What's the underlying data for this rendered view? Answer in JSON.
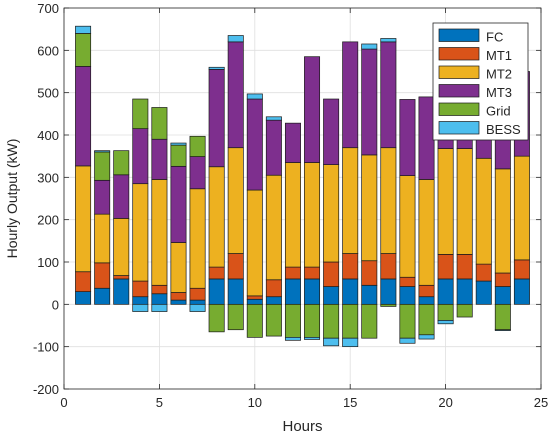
{
  "chart_data": {
    "type": "bar",
    "stacked": true,
    "xlabel": "Hours",
    "ylabel": "Hourly Output (kW)",
    "xlim": [
      0,
      25
    ],
    "ylim": [
      -200,
      700
    ],
    "xticks": [
      0,
      5,
      10,
      15,
      20,
      25
    ],
    "yticks": [
      -200,
      -100,
      0,
      100,
      200,
      300,
      400,
      500,
      600,
      700
    ],
    "grid": true,
    "legend_position": "top-right",
    "x": [
      1,
      2,
      3,
      4,
      5,
      6,
      7,
      8,
      9,
      10,
      11,
      12,
      13,
      14,
      15,
      16,
      17,
      18,
      19,
      20,
      21,
      22,
      23,
      24
    ],
    "series": [
      {
        "name": "FC",
        "color": "#0072BD",
        "values": [
          30,
          38,
          60,
          18,
          25,
          10,
          10,
          60,
          60,
          12,
          18,
          60,
          60,
          42,
          60,
          45,
          60,
          42,
          18,
          60,
          60,
          55,
          42,
          60
        ]
      },
      {
        "name": "MT1",
        "color": "#D95319",
        "values": [
          47,
          60,
          8,
          37,
          20,
          18,
          28,
          28,
          60,
          8,
          40,
          28,
          28,
          58,
          60,
          58,
          60,
          22,
          27,
          58,
          58,
          40,
          32,
          45
        ]
      },
      {
        "name": "MT2",
        "color": "#EDB120",
        "values": [
          250,
          115,
          135,
          230,
          250,
          118,
          235,
          237,
          250,
          250,
          247,
          247,
          247,
          230,
          250,
          250,
          250,
          240,
          250,
          250,
          250,
          250,
          246,
          245
        ]
      },
      {
        "name": "MT3",
        "color": "#7E2F8E",
        "values": [
          235,
          80,
          103,
          130,
          95,
          180,
          76,
          230,
          250,
          215,
          130,
          93,
          250,
          155,
          250,
          250,
          250,
          180,
          195,
          250,
          250,
          250,
          250,
          200
        ]
      },
      {
        "name": "Grid",
        "color": "#77AC30",
        "values": [
          78,
          67,
          57,
          70,
          75,
          50,
          48,
          -65,
          -60,
          -78,
          -75,
          -78,
          -78,
          -80,
          -80,
          -80,
          -5,
          -80,
          -72,
          -38,
          -30,
          0,
          -60,
          0
        ]
      },
      {
        "name": "BESS",
        "color": "#4DBEEE",
        "values": [
          17,
          3,
          0,
          -17,
          -17,
          5,
          -17,
          5,
          15,
          12,
          8,
          -7,
          -5,
          -18,
          -20,
          12,
          8,
          -12,
          -10,
          -8,
          0,
          0,
          -2,
          0
        ]
      }
    ]
  }
}
